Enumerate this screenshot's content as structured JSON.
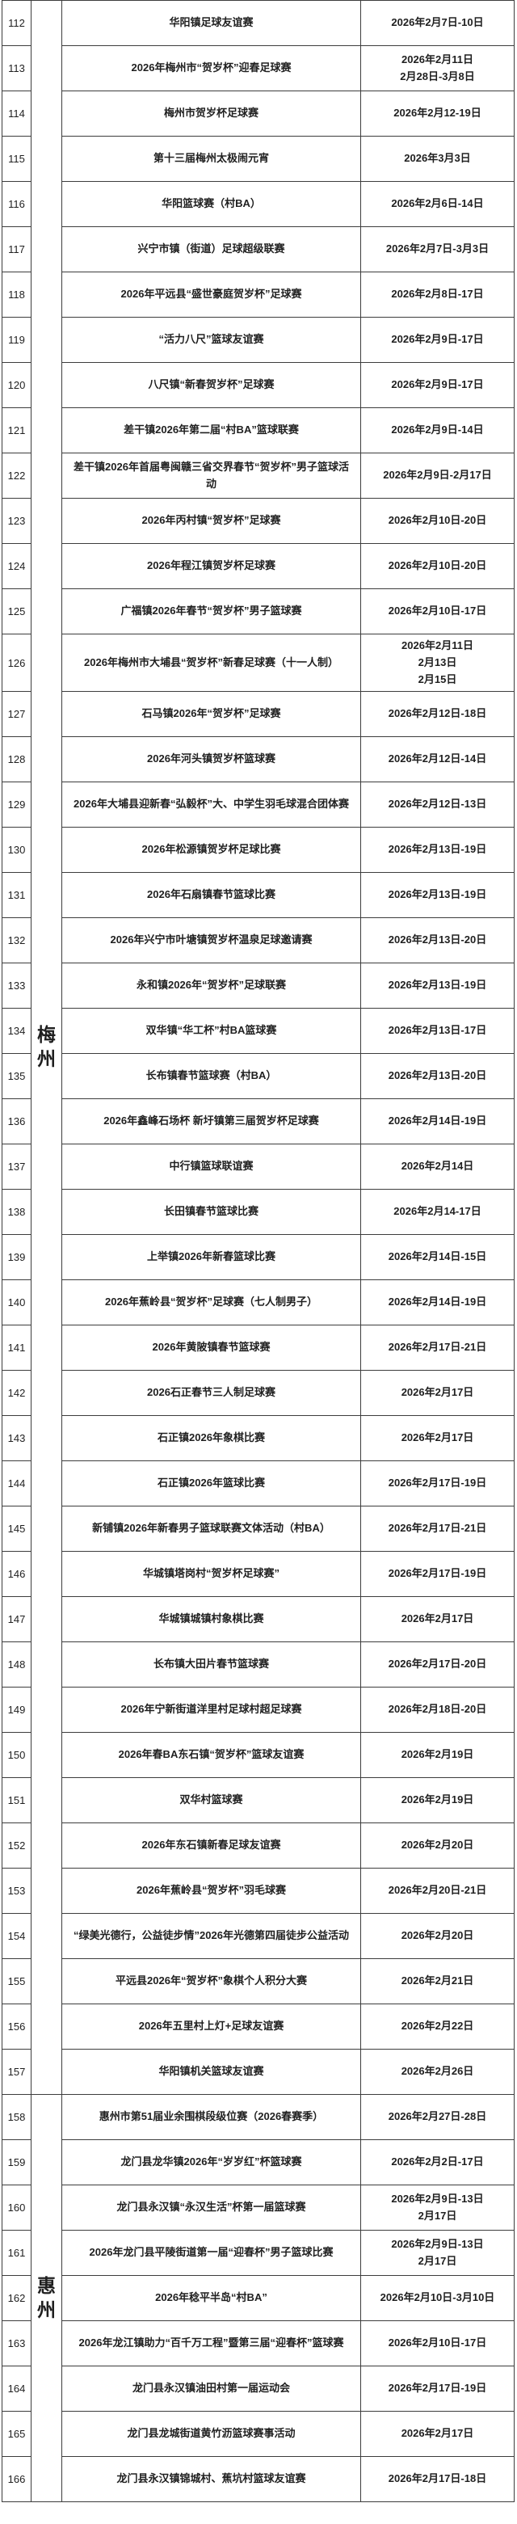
{
  "colors": {
    "background": "#ffffff",
    "border": "#3d3d3d",
    "text": "#1f1f1f"
  },
  "table": {
    "groups": [
      {
        "city": "梅州",
        "rows": [
          {
            "no": "112",
            "name": "华阳镇足球友谊赛",
            "dates": [
              "2026年2月7日-10日"
            ]
          },
          {
            "no": "113",
            "name": "2026年梅州市“贺岁杯”迎春足球赛",
            "dates": [
              "2026年2月11日",
              "2月28日-3月8日"
            ]
          },
          {
            "no": "114",
            "name": "梅州市贺岁杯足球赛",
            "dates": [
              "2026年2月12-19日"
            ]
          },
          {
            "no": "115",
            "name": "第十三届梅州太极闹元宵",
            "dates": [
              "2026年3月3日"
            ]
          },
          {
            "no": "116",
            "name": "华阳篮球赛（村BA）",
            "dates": [
              "2026年2月6日-14日"
            ]
          },
          {
            "no": "117",
            "name": "兴宁市镇（街道）足球超级联赛",
            "dates": [
              "2026年2月7日-3月3日"
            ]
          },
          {
            "no": "118",
            "name": "2026年平远县“盛世豪庭贺岁杯”足球赛",
            "dates": [
              "2026年2月8日-17日"
            ]
          },
          {
            "no": "119",
            "name": "“活力八尺”篮球友谊赛",
            "dates": [
              "2026年2月9日-17日"
            ]
          },
          {
            "no": "120",
            "name": "八尺镇“新春贺岁杯”足球赛",
            "dates": [
              "2026年2月9日-17日"
            ]
          },
          {
            "no": "121",
            "name": "差干镇2026年第二届“村BA”篮球联赛",
            "dates": [
              "2026年2月9日-14日"
            ]
          },
          {
            "no": "122",
            "name": "差干镇2026年首届粤闽赣三省交界春节“贺岁杯”男子篮球活动",
            "dates": [
              "2026年2月9日-2月17日"
            ]
          },
          {
            "no": "123",
            "name": "2026年丙村镇“贺岁杯”足球赛",
            "dates": [
              "2026年2月10日-20日"
            ]
          },
          {
            "no": "124",
            "name": "2026年程江镇贺岁杯足球赛",
            "dates": [
              "2026年2月10日-20日"
            ]
          },
          {
            "no": "125",
            "name": "广福镇2026年春节“贺岁杯”男子篮球赛",
            "dates": [
              "2026年2月10日-17日"
            ]
          },
          {
            "no": "126",
            "name": "2026年梅州市大埔县“贺岁杯”新春足球赛（十一人制）",
            "dates": [
              "2026年2月11日",
              "2月13日",
              "2月15日"
            ]
          },
          {
            "no": "127",
            "name": "石马镇2026年“贺岁杯”足球赛",
            "dates": [
              "2026年2月12日-18日"
            ]
          },
          {
            "no": "128",
            "name": "2026年河头镇贺岁杯篮球赛",
            "dates": [
              "2026年2月12日-14日"
            ]
          },
          {
            "no": "129",
            "name": "2026年大埔县迎新春“弘毅杯”大、中学生羽毛球混合团体赛",
            "dates": [
              "2026年2月12日-13日"
            ]
          },
          {
            "no": "130",
            "name": "2026年松源镇贺岁杯足球比赛",
            "dates": [
              "2026年2月13日-19日"
            ]
          },
          {
            "no": "131",
            "name": "2026年石扇镇春节篮球比赛",
            "dates": [
              "2026年2月13日-19日"
            ]
          },
          {
            "no": "132",
            "name": "2026年兴宁市叶塘镇贺岁杯温泉足球邀请赛",
            "dates": [
              "2026年2月13日-20日"
            ]
          },
          {
            "no": "133",
            "name": "永和镇2026年“贺岁杯”足球联赛",
            "dates": [
              "2026年2月13日-19日"
            ]
          },
          {
            "no": "134",
            "name": "双华镇“华工杯”村BA篮球赛",
            "dates": [
              "2026年2月13日-17日"
            ]
          },
          {
            "no": "135",
            "name": "长布镇春节篮球赛（村BA）",
            "dates": [
              "2026年2月13日-20日"
            ]
          },
          {
            "no": "136",
            "name": "2026年鑫峰石场杯 新圩镇第三届贺岁杯足球赛",
            "dates": [
              "2026年2月14日-19日"
            ]
          },
          {
            "no": "137",
            "name": "中行镇篮球联谊赛",
            "dates": [
              "2026年2月14日"
            ]
          },
          {
            "no": "138",
            "name": "长田镇春节篮球比赛",
            "dates": [
              "2026年2月14-17日"
            ]
          },
          {
            "no": "139",
            "name": "上举镇2026年新春篮球比赛",
            "dates": [
              "2026年2月14日-15日"
            ]
          },
          {
            "no": "140",
            "name": "2026年蕉岭县“贺岁杯”足球赛（七人制男子）",
            "dates": [
              "2026年2月14日-19日"
            ]
          },
          {
            "no": "141",
            "name": "2026年黄陂镇春节篮球赛",
            "dates": [
              "2026年2月17日-21日"
            ]
          },
          {
            "no": "142",
            "name": "2026石正春节三人制足球赛",
            "dates": [
              "2026年2月17日"
            ]
          },
          {
            "no": "143",
            "name": "石正镇2026年象棋比赛",
            "dates": [
              "2026年2月17日"
            ]
          },
          {
            "no": "144",
            "name": "石正镇2026年篮球比赛",
            "dates": [
              "2026年2月17日-19日"
            ]
          },
          {
            "no": "145",
            "name": "新铺镇2026年新春男子篮球联赛文体活动（村BA）",
            "dates": [
              "2026年2月17日-21日"
            ]
          },
          {
            "no": "146",
            "name": "华城镇塔岗村“贺岁杯足球赛”",
            "dates": [
              "2026年2月17日-19日"
            ]
          },
          {
            "no": "147",
            "name": "华城镇城镇村象棋比赛",
            "dates": [
              "2026年2月17日"
            ]
          },
          {
            "no": "148",
            "name": "长布镇大田片春节篮球赛",
            "dates": [
              "2026年2月17日-20日"
            ]
          },
          {
            "no": "149",
            "name": "2026年宁新街道洋里村足球村超足球赛",
            "dates": [
              "2026年2月18日-20日"
            ]
          },
          {
            "no": "150",
            "name": "2026年春BA东石镇“贺岁杯”篮球友谊赛",
            "dates": [
              "2026年2月19日"
            ]
          },
          {
            "no": "151",
            "name": "双华村篮球赛",
            "dates": [
              "2026年2月19日"
            ]
          },
          {
            "no": "152",
            "name": "2026年东石镇新春足球友谊赛",
            "dates": [
              "2026年2月20日"
            ]
          },
          {
            "no": "153",
            "name": "2026年蕉岭县“贺岁杯”羽毛球赛",
            "dates": [
              "2026年2月20日-21日"
            ]
          },
          {
            "no": "154",
            "name": "“绿美光德行，公益徒步情”2026年光德第四届徒步公益活动",
            "dates": [
              "2026年2月20日"
            ]
          },
          {
            "no": "155",
            "name": "平远县2026年“贺岁杯”象棋个人积分大赛",
            "dates": [
              "2026年2月21日"
            ]
          },
          {
            "no": "156",
            "name": "2026年五里村上灯+足球友谊赛",
            "dates": [
              "2026年2月22日"
            ]
          },
          {
            "no": "157",
            "name": "华阳镇机关篮球友谊赛",
            "dates": [
              "2026年2月26日"
            ]
          }
        ]
      },
      {
        "city": "惠州",
        "rows": [
          {
            "no": "158",
            "name": "惠州市第51届业余围棋段级位赛（2026春赛季）",
            "dates": [
              "2026年2月27日-28日"
            ]
          },
          {
            "no": "159",
            "name": "龙门县龙华镇2026年“岁岁红”杯篮球赛",
            "dates": [
              "2026年2月2日-17日"
            ]
          },
          {
            "no": "160",
            "name": "龙门县永汉镇“永汉生活”杯第一届篮球赛",
            "dates": [
              "2026年2月9日-13日",
              "2月17日"
            ]
          },
          {
            "no": "161",
            "name": "2026年龙门县平陵街道第一届“迎春杯”男子篮球比赛",
            "dates": [
              "2026年2月9日-13日",
              "2月17日"
            ]
          },
          {
            "no": "162",
            "name": "2026年稔平半岛“村BA”",
            "dates": [
              "2026年2月10日-3月10日"
            ]
          },
          {
            "no": "163",
            "name": "2026年龙江镇助力“百千万工程”暨第三届“迎春杯”篮球赛",
            "dates": [
              "2026年2月10日-17日"
            ]
          },
          {
            "no": "164",
            "name": "龙门县永汉镇油田村第一届运动会",
            "dates": [
              "2026年2月17日-19日"
            ]
          },
          {
            "no": "165",
            "name": "龙门县龙城街道黄竹沥篮球赛事活动",
            "dates": [
              "2026年2月17日"
            ]
          },
          {
            "no": "166",
            "name": "龙门县永汉镇锦城村、蕉坑村篮球友谊赛",
            "dates": [
              "2026年2月17日-18日"
            ]
          }
        ]
      }
    ]
  }
}
